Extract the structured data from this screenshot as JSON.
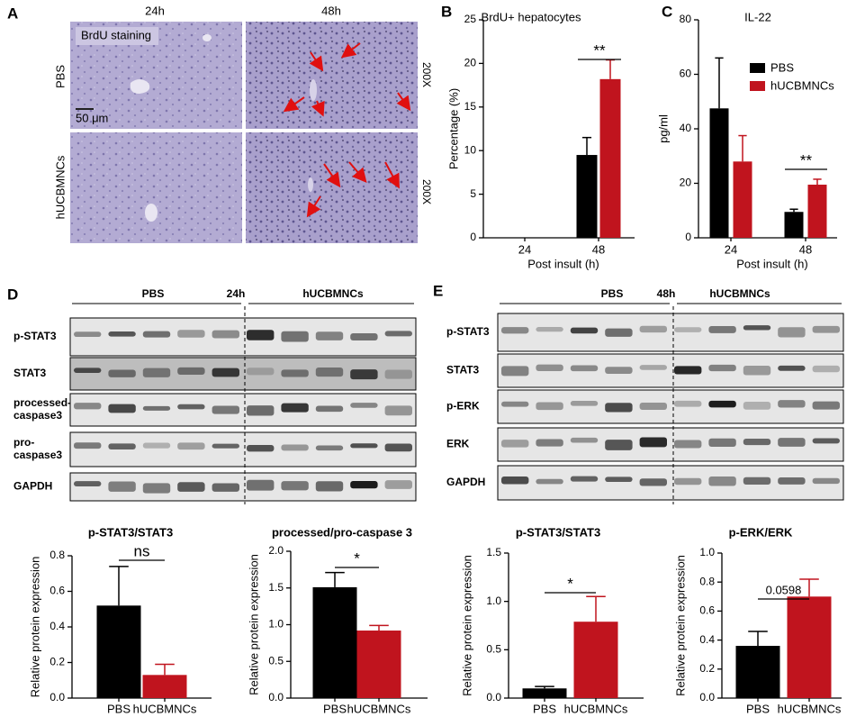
{
  "panel_labels": [
    "A",
    "B",
    "C",
    "D",
    "E"
  ],
  "micrograph": {
    "columns": [
      "24h",
      "48h"
    ],
    "rows": [
      "PBS",
      "hUCBMNCs"
    ],
    "stain": "BrdU staining",
    "scale_bar": "50 μm",
    "magnification": "200X"
  },
  "blots": [
    {
      "time": "24h",
      "groups": [
        "PBS",
        "hUCBMNCs"
      ],
      "rows": [
        [
          "p-STAT3"
        ],
        [
          "STAT3"
        ],
        [
          "processed-",
          "caspase3"
        ],
        [
          "pro-",
          "caspase3"
        ],
        [
          "GAPDH"
        ]
      ]
    },
    {
      "time": "48h",
      "groups": [
        "PBS",
        "hUCBMNCs"
      ],
      "rows": [
        [
          "p-STAT3"
        ],
        [
          "STAT3"
        ],
        [
          "p-ERK"
        ],
        [
          "ERK"
        ],
        [
          "GAPDH"
        ]
      ]
    }
  ],
  "chart_data": [
    {
      "type": "bar",
      "title": "BrdU+ hepatocytes",
      "y_label": "Percentage (%)",
      "x_label": "Post insult (h)",
      "categories": [
        "24",
        "48"
      ],
      "series": [
        {
          "color": "#000000",
          "values": [
            null,
            9.5
          ],
          "errors": [
            null,
            2.0
          ]
        },
        {
          "color": "#c0141e",
          "values": [
            null,
            18.2
          ],
          "errors": [
            null,
            2.2
          ]
        }
      ],
      "ylim": [
        0,
        25
      ],
      "yticks": [
        0,
        5,
        10,
        15,
        20,
        25
      ],
      "annotation": "**",
      "legend": false
    },
    {
      "type": "bar",
      "title": "IL-22",
      "y_label": "pg/ml",
      "x_label": "Post insult (h)",
      "categories": [
        "24",
        "48"
      ],
      "series": [
        {
          "name": "PBS",
          "color": "#000000",
          "values": [
            47.5,
            9.5
          ],
          "errors": [
            18.5,
            1.0
          ]
        },
        {
          "name": "hUCBMNCs",
          "color": "#c0141e",
          "values": [
            28,
            19.5
          ],
          "errors": [
            9.5,
            2.0
          ]
        }
      ],
      "ylim": [
        0,
        80
      ],
      "yticks": [
        0,
        20,
        40,
        60,
        80
      ],
      "annotation": "**",
      "legend": true
    },
    {
      "type": "bar",
      "title": "p-STAT3/STAT3",
      "y_label": "Relative protein expression",
      "categories": [
        "PBS",
        "hUCBMNCs"
      ],
      "values": [
        0.52,
        0.13
      ],
      "errors": [
        0.22,
        0.06
      ],
      "colors": [
        "#000000",
        "#c0141e"
      ],
      "ylim": [
        0,
        0.8
      ],
      "yticks": [
        {
          "value": 0,
          "label": "0.0"
        },
        0.2,
        0.4,
        0.6,
        0.8
      ],
      "annotation": "ns"
    },
    {
      "type": "bar",
      "title": "processed/pro-caspase 3",
      "y_label": "Relative protein expression",
      "categories": [
        "PBS",
        "hUCBMNCs"
      ],
      "values": [
        1.51,
        0.92
      ],
      "errors": [
        0.2,
        0.07
      ],
      "colors": [
        "#000000",
        "#c0141e"
      ],
      "ylim": [
        0,
        2
      ],
      "yticks": [
        {
          "value": 0,
          "label": "0.0"
        },
        0.5,
        {
          "value": 1,
          "label": "1.0"
        },
        1.5,
        {
          "value": 2,
          "label": "2.0"
        }
      ],
      "annotation": "*"
    },
    {
      "type": "bar",
      "title": "p-STAT3/STAT3",
      "y_label": "Relative protein expression",
      "categories": [
        "PBS",
        "hUCBMNCs"
      ],
      "values": [
        0.1,
        0.79
      ],
      "errors": [
        0.02,
        0.26
      ],
      "colors": [
        "#000000",
        "#c0141e"
      ],
      "ylim": [
        0,
        1.5
      ],
      "yticks": [
        {
          "value": 0,
          "label": "0.0"
        },
        0.5,
        {
          "value": 1,
          "label": "1.0"
        },
        1.5
      ],
      "annotation": "*"
    },
    {
      "type": "bar",
      "title": "p-ERK/ERK",
      "y_label": "Relative protein expression",
      "categories": [
        "PBS",
        "hUCBMNCs"
      ],
      "values": [
        0.36,
        0.7
      ],
      "errors": [
        0.1,
        0.12
      ],
      "colors": [
        "#000000",
        "#c0141e"
      ],
      "ylim": [
        0,
        1
      ],
      "yticks": [
        {
          "value": 0,
          "label": "0.0"
        },
        0.2,
        0.4,
        0.6,
        0.8,
        {
          "value": 1,
          "label": "1.0"
        }
      ],
      "annotation": "0.0598"
    }
  ]
}
